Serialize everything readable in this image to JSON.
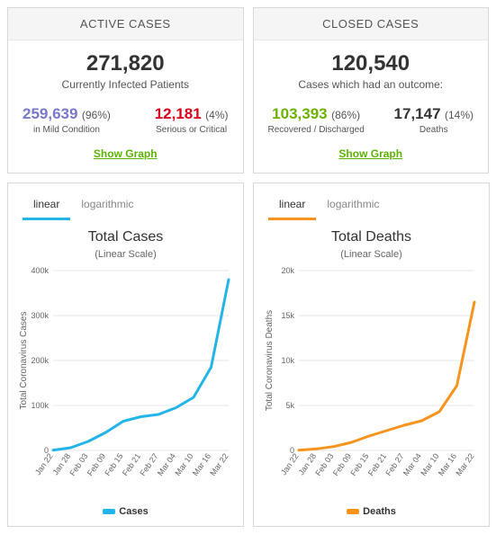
{
  "active": {
    "header": "ACTIVE CASES",
    "total": "271,820",
    "total_label": "Currently Infected Patients",
    "left_num": "259,639",
    "left_pct": "(96%)",
    "left_lbl": "in Mild Condition",
    "left_color": "#7878c8",
    "right_num": "12,181",
    "right_pct": "(4%)",
    "right_lbl": "Serious or Critical",
    "right_color": "#d9001b",
    "show_graph": "Show Graph"
  },
  "closed": {
    "header": "CLOSED CASES",
    "total": "120,540",
    "total_label": "Cases which had an outcome:",
    "left_num": "103,393",
    "left_pct": "(86%)",
    "left_lbl": "Recovered / Discharged",
    "left_color": "#6bb300",
    "right_num": "17,147",
    "right_pct": "(14%)",
    "right_lbl": "Deaths",
    "right_color": "#333333",
    "show_graph": "Show Graph"
  },
  "tabs": {
    "linear": "linear",
    "log": "logarithmic"
  },
  "cases_chart": {
    "type": "line",
    "title": "Total Cases",
    "subtitle": "(Linear Scale)",
    "ylabel": "Total Coronavirus Cases",
    "legend": "Cases",
    "line_color": "#23b5e8",
    "accent": "#23b5e8",
    "grid_color": "#e6e6e6",
    "bg": "#ffffff",
    "ylim": [
      0,
      400000
    ],
    "yticks": [
      0,
      100000,
      200000,
      300000,
      400000
    ],
    "ytick_labels": [
      "0",
      "100k",
      "200k",
      "300k",
      "400k"
    ],
    "x_labels": [
      "Jan 22",
      "Jan 28",
      "Feb 03",
      "Feb 09",
      "Feb 15",
      "Feb 21",
      "Feb 27",
      "Mar 04",
      "Mar 10",
      "Mar 16",
      "Mar 22"
    ],
    "values": [
      500,
      6000,
      20000,
      40000,
      65000,
      75000,
      80000,
      95000,
      118000,
      185000,
      380000
    ]
  },
  "deaths_chart": {
    "type": "line",
    "title": "Total Deaths",
    "subtitle": "(Linear Scale)",
    "ylabel": "Total Coronavirus Deaths",
    "legend": "Deaths",
    "line_color": "#f7941d",
    "accent": "#f7941d",
    "grid_color": "#e6e6e6",
    "bg": "#ffffff",
    "ylim": [
      0,
      20000
    ],
    "yticks": [
      0,
      5000,
      10000,
      15000,
      20000
    ],
    "ytick_labels": [
      "0",
      "5k",
      "10k",
      "15k",
      "20k"
    ],
    "x_labels": [
      "Jan 22",
      "Jan 28",
      "Feb 03",
      "Feb 09",
      "Feb 15",
      "Feb 21",
      "Feb 27",
      "Mar 04",
      "Mar 10",
      "Mar 16",
      "Mar 22"
    ],
    "values": [
      20,
      170,
      430,
      900,
      1600,
      2200,
      2800,
      3300,
      4300,
      7200,
      16500
    ]
  }
}
